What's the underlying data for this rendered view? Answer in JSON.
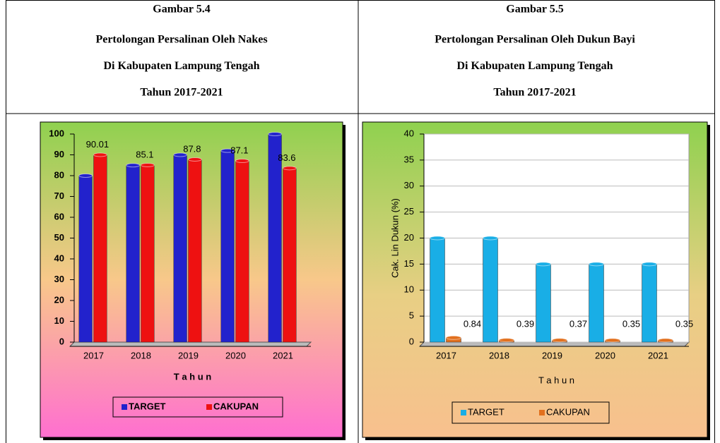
{
  "chart_data": [
    {
      "type": "bar",
      "title": "Gambar 5.4",
      "subtitle": [
        "Pertolongan Persalinan Oleh Nakes",
        "Di Kabupaten Lampung Tengah",
        "Tahun 2017-2021"
      ],
      "categories": [
        "2017",
        "2018",
        "2019",
        "2020",
        "2021"
      ],
      "series": [
        {
          "name": "TARGET",
          "color": "#2222cc",
          "values": [
            80,
            85,
            90,
            92,
            100
          ]
        },
        {
          "name": "CAKUPAN",
          "color": "#ee1111",
          "values": [
            90.01,
            85.1,
            87.8,
            87.1,
            83.6
          ],
          "labels": true
        }
      ],
      "ylim": [
        0,
        100
      ],
      "yticks": [
        0,
        10,
        20,
        30,
        40,
        50,
        60,
        70,
        80,
        90,
        100
      ],
      "xlabel": "T a h u n",
      "grid": false,
      "legend": "bottom"
    },
    {
      "type": "bar",
      "title": "Gambar 5.5",
      "subtitle": [
        "Pertolongan Persalinan Oleh Dukun Bayi",
        "Di Kabupaten Lampung Tengah",
        "Tahun 2017-2021"
      ],
      "categories": [
        "2017",
        "2018",
        "2019",
        "2020",
        "2021"
      ],
      "series": [
        {
          "name": "TARGET",
          "color": "#19aee6",
          "values": [
            20,
            20,
            15,
            15,
            15
          ]
        },
        {
          "name": "CAKUPAN",
          "color": "#e2701e",
          "values": [
            0.84,
            0.39,
            0.37,
            0.35,
            0.35
          ],
          "labels": true
        }
      ],
      "ylim": [
        0,
        40
      ],
      "yticks": [
        0,
        5,
        10,
        15,
        20,
        25,
        30,
        35,
        40
      ],
      "xlabel": "T a h u n",
      "ylabel": "Cak. Lin Dukun (%)",
      "grid": true,
      "legend": "bottom"
    }
  ]
}
